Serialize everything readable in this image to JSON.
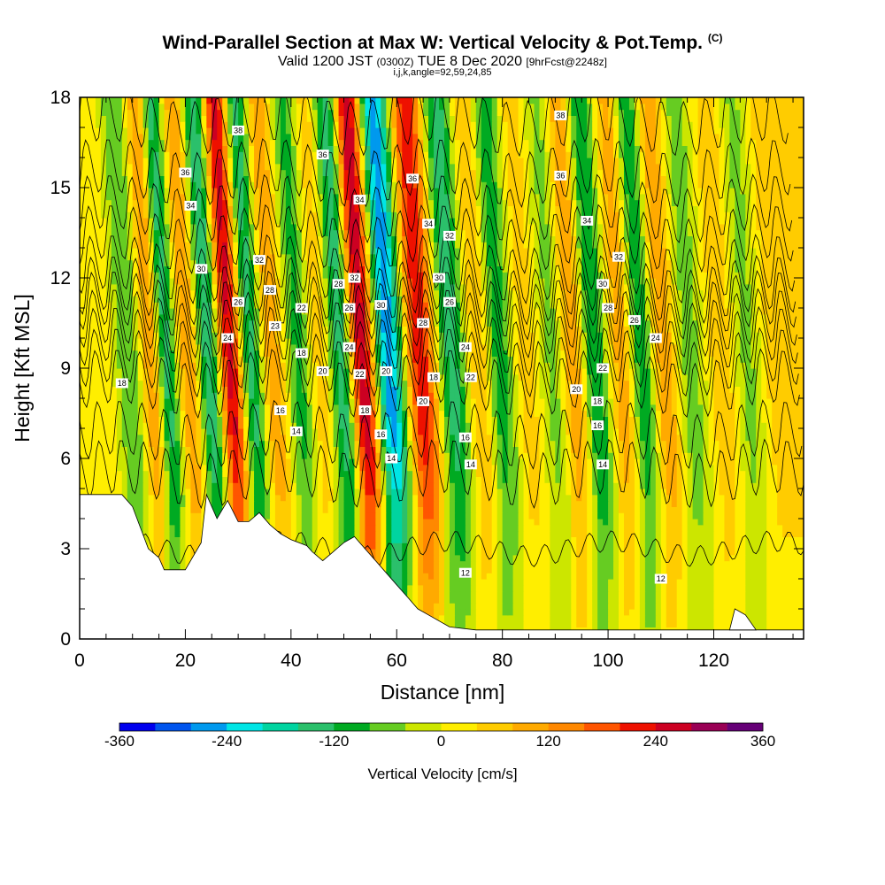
{
  "title": {
    "main": "Wind-Parallel Section at Max W: Vertical Velocity & Pot.Temp.",
    "corner": "(C)",
    "valid_prefix": "Valid 1200 JST",
    "valid_utc": "(0300Z)",
    "valid_date": "TUE 8 Dec 2020",
    "forecast": "[9hrFcst@2248z]",
    "params": "i,j,k,angle=92,59,24,85"
  },
  "chart_data": {
    "type": "heatmap",
    "xlabel": "Distance [nm]",
    "ylabel": "Height [Kft MSL]",
    "xlim": [
      0,
      137
    ],
    "ylim": [
      0,
      18
    ],
    "x_ticks": [
      "0",
      "20",
      "40",
      "60",
      "80",
      "100",
      "120"
    ],
    "y_ticks": [
      "0",
      "3",
      "6",
      "9",
      "12",
      "15",
      "18"
    ],
    "colorbar": {
      "label": "Vertical Velocity [cm/s]",
      "ticks": [
        "-360",
        "-240",
        "-120",
        "0",
        "120",
        "240",
        "360"
      ],
      "range": [
        -360,
        360
      ],
      "step": 40,
      "colors": [
        "#0000ee",
        "#0055ee",
        "#0099ee",
        "#00e5e5",
        "#00d4a0",
        "#2bc06b",
        "#00aa22",
        "#66cc22",
        "#cce600",
        "#ffee00",
        "#ffcc00",
        "#ffaa00",
        "#ff8800",
        "#ff5500",
        "#ee1100",
        "#cc0022",
        "#990055",
        "#660077"
      ]
    },
    "w_columns": [
      {
        "x": 6,
        "w": 30
      },
      {
        "x": 11,
        "w": -80
      },
      {
        "x": 15,
        "w": 110
      },
      {
        "x": 18,
        "w": -130
      },
      {
        "x": 22,
        "w": 120
      },
      {
        "x": 26,
        "w": -150
      },
      {
        "x": 30,
        "w": 250
      },
      {
        "x": 34,
        "w": -130
      },
      {
        "x": 38,
        "w": 110
      },
      {
        "x": 43,
        "w": -90
      },
      {
        "x": 47,
        "w": 60
      },
      {
        "x": 51,
        "w": -140
      },
      {
        "x": 55,
        "w": 270
      },
      {
        "x": 60,
        "w": -260
      },
      {
        "x": 66,
        "w": 230
      },
      {
        "x": 72,
        "w": -140
      },
      {
        "x": 77,
        "w": 80
      },
      {
        "x": 81,
        "w": -100
      },
      {
        "x": 86,
        "w": 60
      },
      {
        "x": 91,
        "w": -50
      },
      {
        "x": 95,
        "w": 110
      },
      {
        "x": 99,
        "w": -120
      },
      {
        "x": 104,
        "w": 100
      },
      {
        "x": 108,
        "w": -110
      },
      {
        "x": 112,
        "w": 110
      },
      {
        "x": 117,
        "w": -60
      },
      {
        "x": 123,
        "w": 70
      },
      {
        "x": 128,
        "w": -50
      },
      {
        "x": 133,
        "w": 60
      }
    ],
    "terrain_kft": [
      [
        0,
        4.8
      ],
      [
        8,
        4.8
      ],
      [
        10,
        4.4
      ],
      [
        13,
        3.0
      ],
      [
        15,
        2.7
      ],
      [
        16,
        2.3
      ],
      [
        20,
        2.3
      ],
      [
        21,
        2.6
      ],
      [
        23,
        3.2
      ],
      [
        24,
        4.8
      ],
      [
        26,
        4.0
      ],
      [
        28,
        4.6
      ],
      [
        30,
        3.9
      ],
      [
        32,
        3.9
      ],
      [
        34,
        4.2
      ],
      [
        36,
        3.8
      ],
      [
        38,
        3.5
      ],
      [
        40,
        3.3
      ],
      [
        43,
        3.1
      ],
      [
        44,
        2.9
      ],
      [
        46,
        2.6
      ],
      [
        48,
        2.9
      ],
      [
        50,
        3.2
      ],
      [
        52,
        3.4
      ],
      [
        54,
        3.0
      ],
      [
        56,
        2.6
      ],
      [
        58,
        2.2
      ],
      [
        60,
        1.8
      ],
      [
        62,
        1.4
      ],
      [
        64,
        1.0
      ],
      [
        66,
        0.8
      ],
      [
        70,
        0.4
      ],
      [
        75,
        0.3
      ],
      [
        137,
        0.3
      ]
    ],
    "isotherms": [
      {
        "v": 12,
        "h": 3.0
      },
      {
        "v": 14,
        "h": 5.5
      },
      {
        "v": 16,
        "h": 6.8
      },
      {
        "v": 18,
        "h": 8.5
      },
      {
        "v": 20,
        "h": 9.2
      },
      {
        "v": 22,
        "h": 9.9
      },
      {
        "v": 24,
        "h": 10.5
      },
      {
        "v": 26,
        "h": 11.1
      },
      {
        "v": 28,
        "h": 11.6
      },
      {
        "v": 30,
        "h": 12.3
      },
      {
        "v": 32,
        "h": 13.3
      },
      {
        "v": 34,
        "h": 14.3
      },
      {
        "v": 36,
        "h": 15.5
      },
      {
        "v": 38,
        "h": 17.2
      }
    ],
    "contour_labels": [
      {
        "x": 30,
        "y": 16.9,
        "t": "38"
      },
      {
        "x": 20,
        "y": 15.5,
        "t": "36"
      },
      {
        "x": 21,
        "y": 14.4,
        "t": "34"
      },
      {
        "x": 46,
        "y": 16.1,
        "t": "36"
      },
      {
        "x": 53,
        "y": 14.6,
        "t": "34"
      },
      {
        "x": 34,
        "y": 12.6,
        "t": "32"
      },
      {
        "x": 23,
        "y": 12.3,
        "t": "30"
      },
      {
        "x": 36,
        "y": 11.6,
        "t": "28"
      },
      {
        "x": 30,
        "y": 11.2,
        "t": "26"
      },
      {
        "x": 42,
        "y": 11.0,
        "t": "22"
      },
      {
        "x": 37,
        "y": 10.4,
        "t": "23"
      },
      {
        "x": 28,
        "y": 10.0,
        "t": "24"
      },
      {
        "x": 42,
        "y": 9.5,
        "t": "18"
      },
      {
        "x": 46,
        "y": 8.9,
        "t": "20"
      },
      {
        "x": 38,
        "y": 7.6,
        "t": "16"
      },
      {
        "x": 41,
        "y": 6.9,
        "t": "14"
      },
      {
        "x": 8,
        "y": 8.5,
        "t": "18"
      },
      {
        "x": 63,
        "y": 15.3,
        "t": "36"
      },
      {
        "x": 66,
        "y": 13.8,
        "t": "34"
      },
      {
        "x": 70,
        "y": 13.4,
        "t": "32"
      },
      {
        "x": 52,
        "y": 12.0,
        "t": "32"
      },
      {
        "x": 49,
        "y": 11.8,
        "t": "28"
      },
      {
        "x": 51,
        "y": 11.0,
        "t": "26"
      },
      {
        "x": 57,
        "y": 11.1,
        "t": "30"
      },
      {
        "x": 51,
        "y": 9.7,
        "t": "24"
      },
      {
        "x": 53,
        "y": 8.8,
        "t": "22"
      },
      {
        "x": 54,
        "y": 7.6,
        "t": "18"
      },
      {
        "x": 58,
        "y": 8.9,
        "t": "20"
      },
      {
        "x": 57,
        "y": 6.8,
        "t": "16"
      },
      {
        "x": 59,
        "y": 6.0,
        "t": "14"
      },
      {
        "x": 65,
        "y": 10.5,
        "t": "28"
      },
      {
        "x": 68,
        "y": 12.0,
        "t": "30"
      },
      {
        "x": 70,
        "y": 11.2,
        "t": "26"
      },
      {
        "x": 73,
        "y": 9.7,
        "t": "24"
      },
      {
        "x": 74,
        "y": 8.7,
        "t": "22"
      },
      {
        "x": 67,
        "y": 8.7,
        "t": "18"
      },
      {
        "x": 65,
        "y": 7.9,
        "t": "20"
      },
      {
        "x": 73,
        "y": 6.7,
        "t": "16"
      },
      {
        "x": 74,
        "y": 5.8,
        "t": "14"
      },
      {
        "x": 73,
        "y": 2.2,
        "t": "12"
      },
      {
        "x": 91,
        "y": 17.4,
        "t": "38"
      },
      {
        "x": 91,
        "y": 15.4,
        "t": "36"
      },
      {
        "x": 96,
        "y": 13.9,
        "t": "34"
      },
      {
        "x": 102,
        "y": 12.7,
        "t": "32"
      },
      {
        "x": 99,
        "y": 11.8,
        "t": "30"
      },
      {
        "x": 100,
        "y": 11.0,
        "t": "28"
      },
      {
        "x": 105,
        "y": 10.6,
        "t": "26"
      },
      {
        "x": 109,
        "y": 10.0,
        "t": "24"
      },
      {
        "x": 99,
        "y": 9.0,
        "t": "22"
      },
      {
        "x": 94,
        "y": 8.3,
        "t": "20"
      },
      {
        "x": 98,
        "y": 7.9,
        "t": "18"
      },
      {
        "x": 98,
        "y": 7.1,
        "t": "16"
      },
      {
        "x": 99,
        "y": 5.8,
        "t": "14"
      },
      {
        "x": 110,
        "y": 2.0,
        "t": "12"
      }
    ]
  }
}
